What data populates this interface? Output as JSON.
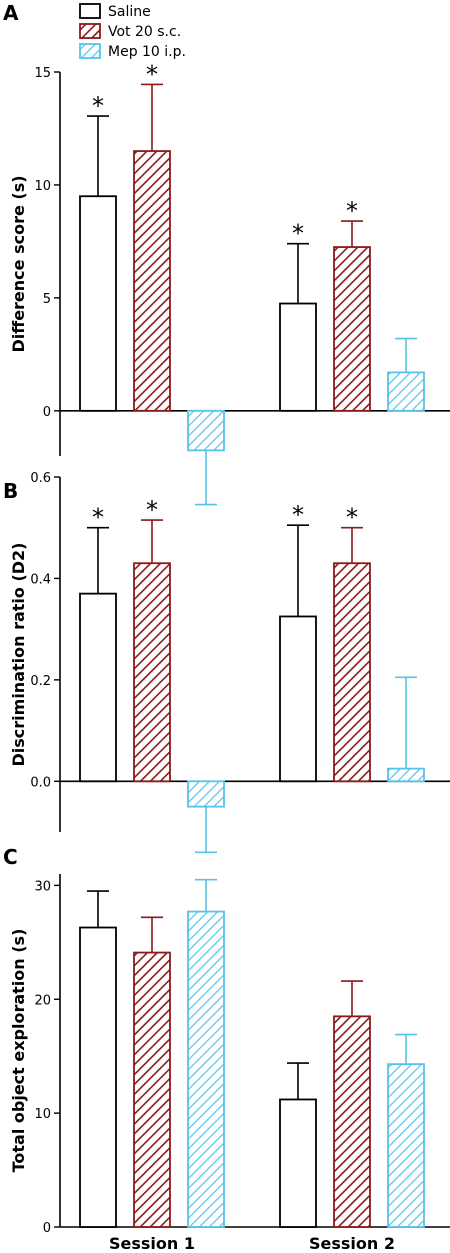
{
  "colors": {
    "saline": "#000000",
    "vot": "#8b1a1a",
    "mep": "#55c3e8"
  },
  "legend": [
    {
      "label": "Saline",
      "pattern": "none",
      "color": "#000000"
    },
    {
      "label": "Vot 20 s.c.",
      "pattern": "hatch",
      "color": "#8b1a1a"
    },
    {
      "label": "Mep 10 i.p.",
      "pattern": "hatch",
      "color": "#55c3e8"
    }
  ],
  "x_categories": [
    "Session 1",
    "Session 2"
  ],
  "chart_data": [
    {
      "panel": "A",
      "type": "bar",
      "ylabel": "Difference score (s)",
      "ylim": [
        -2,
        15
      ],
      "yticks": [
        0,
        5,
        10,
        15
      ],
      "categories": [
        "Session 1",
        "Session 2"
      ],
      "show_category_labels": false,
      "series": [
        {
          "name": "Saline",
          "values": [
            9.5,
            4.75
          ],
          "errors": [
            3.55,
            2.65
          ],
          "sig": [
            "*",
            "*"
          ]
        },
        {
          "name": "Vot 20 s.c.",
          "values": [
            11.5,
            7.25
          ],
          "errors": [
            2.95,
            1.15
          ],
          "sig": [
            "*",
            "*"
          ]
        },
        {
          "name": "Mep 10 i.p.",
          "values": [
            -1.75,
            1.7
          ],
          "errors": [
            2.4,
            1.5
          ],
          "sig": [
            "",
            ""
          ]
        }
      ]
    },
    {
      "panel": "B",
      "type": "bar",
      "ylabel": "Discrimination ratio (D2)",
      "ylim": [
        -0.1,
        0.6
      ],
      "yticks": [
        0.0,
        0.2,
        0.4,
        0.6
      ],
      "tick_decimals": 1,
      "categories": [
        "Session 1",
        "Session 2"
      ],
      "show_category_labels": false,
      "series": [
        {
          "name": "Saline",
          "values": [
            0.37,
            0.325
          ],
          "errors": [
            0.13,
            0.18
          ],
          "sig": [
            "*",
            "*"
          ]
        },
        {
          "name": "Vot 20 s.c.",
          "values": [
            0.43,
            0.43
          ],
          "errors": [
            0.085,
            0.07
          ],
          "sig": [
            "*",
            "*"
          ]
        },
        {
          "name": "Mep 10 i.p.",
          "values": [
            -0.05,
            0.025
          ],
          "errors": [
            0.09,
            0.18
          ],
          "sig": [
            "",
            ""
          ]
        }
      ]
    },
    {
      "panel": "C",
      "type": "bar",
      "ylabel": "Total object exploration (s)",
      "ylim": [
        0,
        31
      ],
      "yticks": [
        0,
        10,
        20,
        30
      ],
      "categories": [
        "Session 1",
        "Session 2"
      ],
      "show_category_labels": true,
      "series": [
        {
          "name": "Saline",
          "values": [
            26.3,
            11.2
          ],
          "errors": [
            3.2,
            3.2
          ],
          "sig": [
            "",
            ""
          ]
        },
        {
          "name": "Vot 20 s.c.",
          "values": [
            24.1,
            18.5
          ],
          "errors": [
            3.1,
            3.1
          ],
          "sig": [
            "",
            ""
          ]
        },
        {
          "name": "Mep 10 i.p.",
          "values": [
            27.7,
            14.3
          ],
          "errors": [
            2.8,
            2.6
          ],
          "sig": [
            "",
            ""
          ]
        }
      ]
    }
  ]
}
